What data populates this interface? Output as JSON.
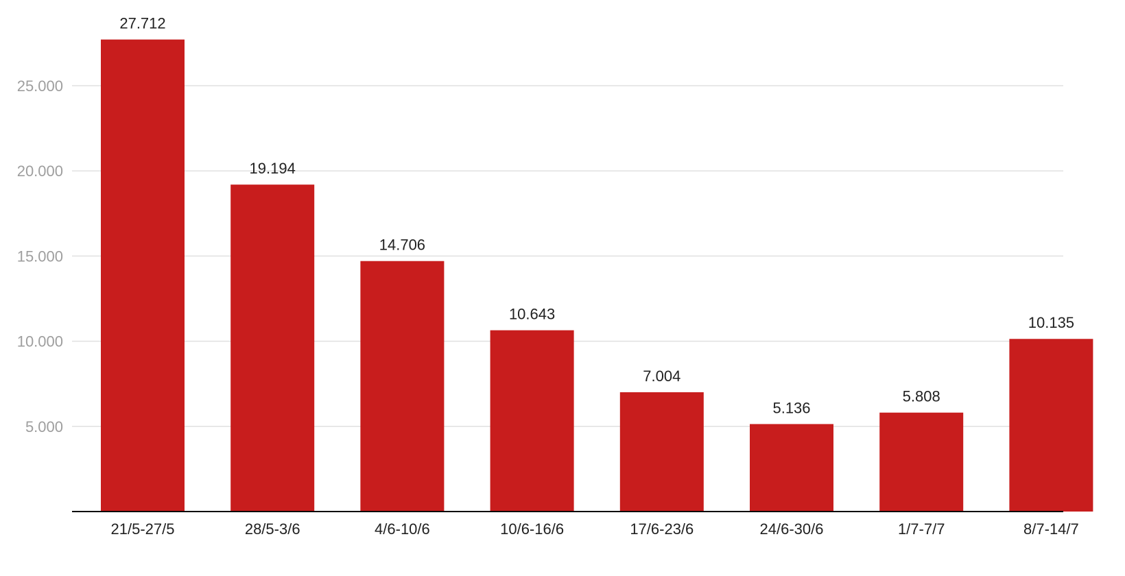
{
  "chart_data": {
    "type": "bar",
    "title": "",
    "xlabel": "",
    "ylabel": "",
    "categories": [
      "21/5-27/5",
      "28/5-3/6",
      "4/6-10/6",
      "10/6-16/6",
      "17/6-23/6",
      "24/6-30/6",
      "1/7-7/7",
      "8/7-14/7"
    ],
    "values": [
      27712,
      19194,
      14706,
      10643,
      7004,
      5136,
      5808,
      10135
    ],
    "value_labels": [
      "27.712",
      "19.194",
      "14.706",
      "10.643",
      "7.004",
      "5.136",
      "5.808",
      "10.135"
    ],
    "ylim": [
      0,
      30000
    ],
    "yticks": [
      5000,
      10000,
      15000,
      20000,
      25000
    ],
    "ytick_labels": [
      "5.000",
      "10.000",
      "15.000",
      "20.000",
      "25.000"
    ],
    "grid": true,
    "legend": "none",
    "colors": {
      "bar": "#c81d1d",
      "grid": "#e0e0e0",
      "axis": "#000000",
      "tick_text": "#9e9e9e",
      "label_text": "#212121"
    }
  }
}
